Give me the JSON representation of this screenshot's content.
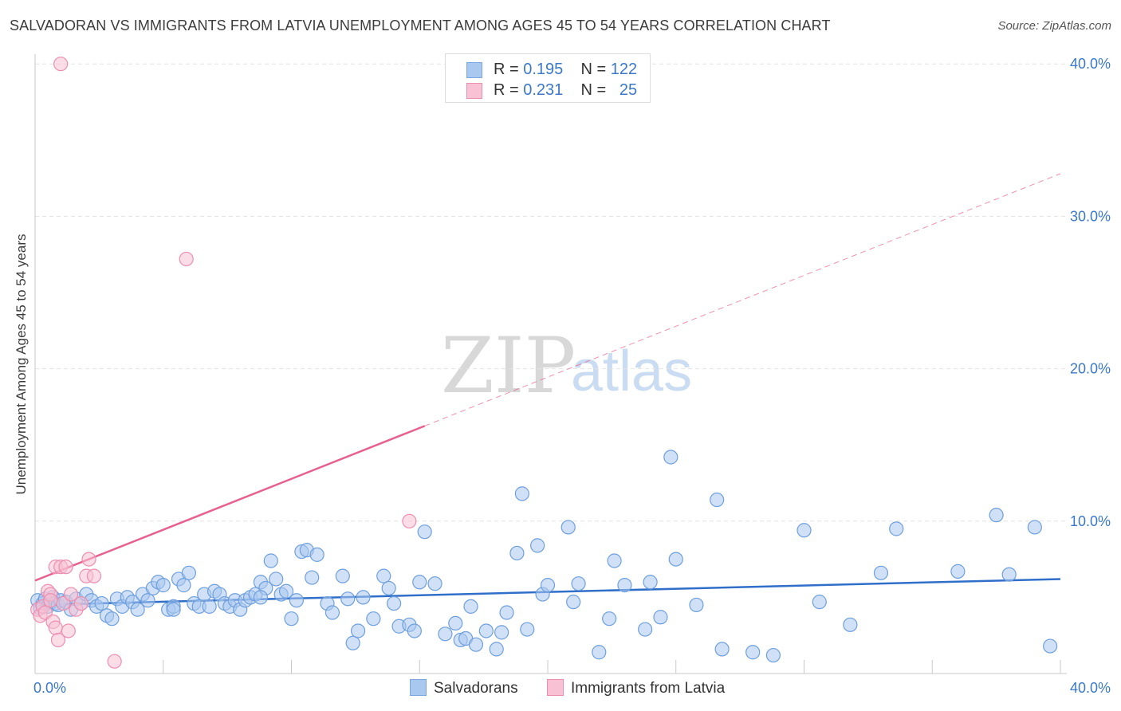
{
  "title": "SALVADORAN VS IMMIGRANTS FROM LATVIA UNEMPLOYMENT AMONG AGES 45 TO 54 YEARS CORRELATION CHART",
  "source": "Source: ZipAtlas.com",
  "watermark": {
    "zip": "ZIP",
    "atlas": "atlas"
  },
  "legend": {
    "rows": [
      {
        "r_label": "R =",
        "r_value": "0.195",
        "n_label": "N =",
        "n_value": "122",
        "color": "#a9c8f0",
        "border": "#7aa7e0"
      },
      {
        "r_label": "R =",
        "r_value": "0.231",
        "n_label": "N =",
        "n_value": "25",
        "color": "#f8c1d4",
        "border": "#ec8eb0"
      }
    ]
  },
  "bottom_legend": [
    {
      "label": "Salvadorans",
      "color": "#a9c8f0",
      "border": "#7aa7e0"
    },
    {
      "label": "Immigrants from Latvia",
      "color": "#f8c1d4",
      "border": "#ec8eb0"
    }
  ],
  "chart_data": {
    "type": "scatter",
    "title": "SALVADORAN VS IMMIGRANTS FROM LATVIA UNEMPLOYMENT AMONG AGES 45 TO 54 YEARS CORRELATION CHART",
    "xlabel": "",
    "ylabel": "Unemployment Among Ages 45 to 54 years",
    "xlim": [
      0,
      40
    ],
    "ylim": [
      0,
      42
    ],
    "x_tick_labels": [
      "0.0%",
      "40.0%"
    ],
    "y_ticks": [
      10,
      20,
      30,
      40
    ],
    "y_tick_labels": [
      "10.0%",
      "20.0%",
      "30.0%",
      "40.0%"
    ],
    "grid": true,
    "series": [
      {
        "name": "Salvadorans",
        "color": "#a9c8f0",
        "edge": "#6f9fdc",
        "trend": {
          "x": [
            0,
            40
          ],
          "y": [
            4.5,
            6.2
          ],
          "color": "#2f6fc9",
          "dashed_after": null
        },
        "points": [
          [
            0.1,
            4.8
          ],
          [
            0.2,
            4.3
          ],
          [
            0.3,
            4.6
          ],
          [
            0.4,
            4.9
          ],
          [
            0.5,
            4.4
          ],
          [
            0.6,
            4.7
          ],
          [
            0.7,
            5.0
          ],
          [
            0.8,
            4.6
          ],
          [
            0.9,
            4.5
          ],
          [
            1.0,
            4.8
          ],
          [
            1.2,
            4.7
          ],
          [
            1.4,
            4.2
          ],
          [
            1.6,
            4.9
          ],
          [
            1.8,
            4.6
          ],
          [
            2.0,
            5.2
          ],
          [
            2.2,
            4.8
          ],
          [
            2.4,
            4.4
          ],
          [
            2.6,
            4.6
          ],
          [
            2.8,
            3.8
          ],
          [
            3.0,
            3.6
          ],
          [
            3.2,
            4.9
          ],
          [
            3.4,
            4.4
          ],
          [
            3.6,
            5.0
          ],
          [
            3.8,
            4.7
          ],
          [
            4.0,
            4.2
          ],
          [
            4.2,
            5.2
          ],
          [
            4.4,
            4.8
          ],
          [
            4.6,
            5.6
          ],
          [
            4.8,
            6.0
          ],
          [
            5.0,
            5.8
          ],
          [
            5.2,
            4.2
          ],
          [
            5.4,
            4.4
          ],
          [
            5.6,
            6.2
          ],
          [
            5.8,
            5.8
          ],
          [
            6.0,
            6.6
          ],
          [
            6.2,
            4.6
          ],
          [
            6.4,
            4.4
          ],
          [
            6.6,
            5.2
          ],
          [
            6.8,
            4.4
          ],
          [
            7.0,
            5.4
          ],
          [
            7.2,
            5.2
          ],
          [
            7.4,
            4.6
          ],
          [
            7.6,
            4.4
          ],
          [
            7.8,
            4.8
          ],
          [
            8.0,
            4.2
          ],
          [
            8.2,
            4.8
          ],
          [
            8.4,
            5.0
          ],
          [
            8.6,
            5.2
          ],
          [
            8.8,
            6.0
          ],
          [
            9.0,
            5.6
          ],
          [
            9.2,
            7.4
          ],
          [
            9.4,
            6.2
          ],
          [
            9.6,
            5.2
          ],
          [
            9.8,
            5.4
          ],
          [
            10.0,
            3.6
          ],
          [
            10.2,
            4.8
          ],
          [
            10.4,
            8.0
          ],
          [
            10.6,
            8.1
          ],
          [
            10.8,
            6.3
          ],
          [
            11.0,
            7.8
          ],
          [
            11.4,
            4.6
          ],
          [
            11.6,
            4.0
          ],
          [
            12.0,
            6.4
          ],
          [
            12.2,
            4.9
          ],
          [
            12.4,
            2.0
          ],
          [
            12.6,
            2.8
          ],
          [
            12.8,
            5.0
          ],
          [
            13.2,
            3.6
          ],
          [
            13.6,
            6.4
          ],
          [
            13.8,
            5.6
          ],
          [
            14.0,
            4.6
          ],
          [
            14.2,
            3.1
          ],
          [
            14.6,
            3.2
          ],
          [
            14.8,
            2.8
          ],
          [
            15.0,
            6.0
          ],
          [
            15.2,
            9.3
          ],
          [
            15.6,
            5.9
          ],
          [
            16.0,
            2.6
          ],
          [
            16.4,
            3.3
          ],
          [
            16.6,
            2.2
          ],
          [
            16.8,
            2.3
          ],
          [
            17.0,
            4.4
          ],
          [
            17.2,
            1.9
          ],
          [
            17.6,
            2.8
          ],
          [
            18.0,
            1.6
          ],
          [
            18.2,
            2.7
          ],
          [
            18.4,
            4.0
          ],
          [
            18.8,
            7.9
          ],
          [
            19.0,
            11.8
          ],
          [
            19.2,
            2.9
          ],
          [
            19.6,
            8.4
          ],
          [
            19.8,
            5.2
          ],
          [
            20.0,
            5.8
          ],
          [
            20.8,
            9.6
          ],
          [
            21.0,
            4.7
          ],
          [
            21.2,
            5.9
          ],
          [
            22.0,
            1.4
          ],
          [
            22.4,
            3.6
          ],
          [
            22.6,
            7.4
          ],
          [
            23.0,
            5.8
          ],
          [
            23.8,
            2.9
          ],
          [
            24.0,
            6.0
          ],
          [
            24.4,
            3.7
          ],
          [
            24.8,
            14.2
          ],
          [
            25.0,
            7.5
          ],
          [
            25.8,
            4.5
          ],
          [
            26.6,
            11.4
          ],
          [
            26.8,
            1.6
          ],
          [
            28.0,
            1.4
          ],
          [
            28.8,
            1.2
          ],
          [
            30.0,
            9.4
          ],
          [
            30.6,
            4.7
          ],
          [
            31.8,
            3.2
          ],
          [
            33.0,
            6.6
          ],
          [
            33.6,
            9.5
          ],
          [
            36.0,
            6.7
          ],
          [
            37.5,
            10.4
          ],
          [
            38.0,
            6.5
          ],
          [
            39.0,
            9.6
          ],
          [
            39.6,
            1.8
          ],
          [
            5.4,
            4.2
          ],
          [
            8.8,
            5.0
          ]
        ]
      },
      {
        "name": "Immigrants from Latvia",
        "color": "#f8c1d4",
        "edge": "#ec8eb0",
        "trend": {
          "x": [
            0,
            40
          ],
          "y": [
            6.1,
            32.8
          ],
          "solid_until_x": 15.2,
          "color": "#e8608f"
        },
        "points": [
          [
            0.1,
            4.2
          ],
          [
            0.2,
            3.8
          ],
          [
            0.3,
            4.4
          ],
          [
            0.4,
            4.0
          ],
          [
            0.5,
            5.4
          ],
          [
            0.6,
            5.2
          ],
          [
            0.7,
            3.4
          ],
          [
            0.8,
            3.0
          ],
          [
            0.9,
            2.2
          ],
          [
            0.8,
            7.0
          ],
          [
            1.0,
            7.0
          ],
          [
            1.1,
            4.6
          ],
          [
            1.2,
            7.0
          ],
          [
            1.4,
            5.2
          ],
          [
            1.6,
            4.2
          ],
          [
            1.8,
            4.6
          ],
          [
            2.0,
            6.4
          ],
          [
            2.1,
            7.5
          ],
          [
            2.3,
            6.4
          ],
          [
            3.1,
            0.8
          ],
          [
            1.0,
            40.0
          ],
          [
            5.9,
            27.2
          ],
          [
            14.6,
            10.0
          ],
          [
            0.6,
            4.8
          ],
          [
            1.3,
            2.8
          ]
        ]
      }
    ]
  }
}
